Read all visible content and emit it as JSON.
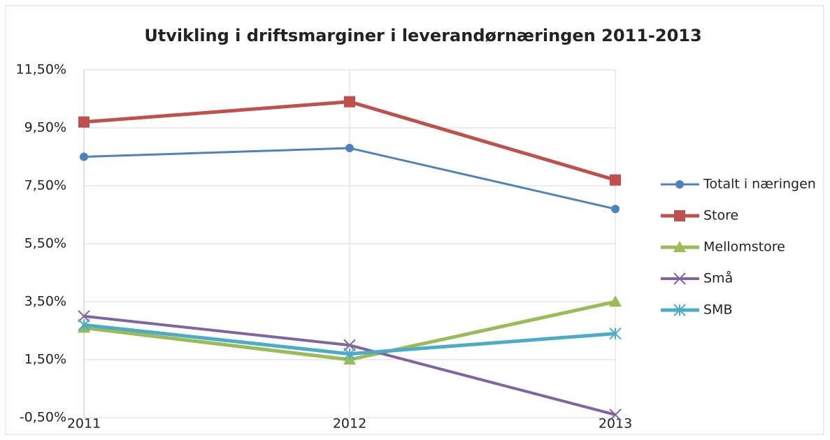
{
  "chart_data": {
    "type": "line",
    "title": "Utvikling i driftsmarginer i leverandørnæringen 2011-2013",
    "categories": [
      "2011",
      "2012",
      "2013"
    ],
    "series": [
      {
        "name": "Totalt i næringen",
        "color": "#4f81bd",
        "marker": "circle",
        "values": [
          8.5,
          8.8,
          6.7
        ]
      },
      {
        "name": "Store",
        "color": "#c0504d",
        "marker": "square",
        "values": [
          9.7,
          10.4,
          7.7
        ]
      },
      {
        "name": "Mellomstore",
        "color": "#9bbb59",
        "marker": "triangle",
        "values": [
          2.6,
          1.5,
          3.5
        ]
      },
      {
        "name": "Små",
        "color": "#8064a2",
        "marker": "x",
        "values": [
          3.0,
          2.0,
          -0.4
        ]
      },
      {
        "name": "SMB",
        "color": "#4bacc6",
        "marker": "star",
        "values": [
          2.7,
          1.7,
          2.4
        ]
      }
    ],
    "ylim": [
      -0.5,
      11.5
    ],
    "yticks": [
      {
        "value": -0.5,
        "label": "-0,50%"
      },
      {
        "value": 1.5,
        "label": "1,50%"
      },
      {
        "value": 3.5,
        "label": "3,50%"
      },
      {
        "value": 5.5,
        "label": "5,50%"
      },
      {
        "value": 7.5,
        "label": "7,50%"
      },
      {
        "value": 9.5,
        "label": "9,50%"
      },
      {
        "value": 11.5,
        "label": "11,50%"
      }
    ],
    "grid": true,
    "legend": "right"
  }
}
